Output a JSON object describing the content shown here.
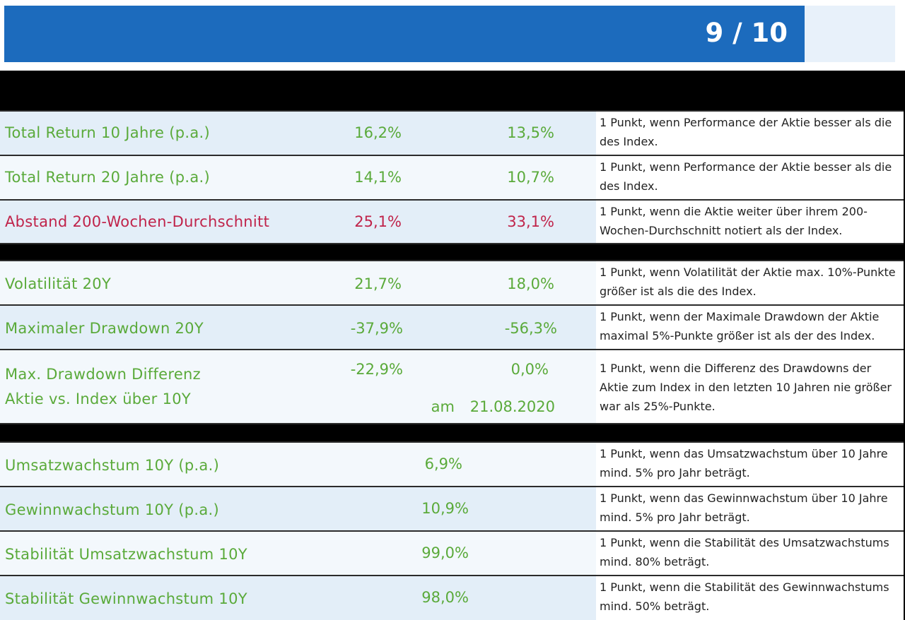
{
  "header": {
    "score": "9 / 10"
  },
  "performance_rows": [
    {
      "label": "Total Return 10 Jahre (p.a.)",
      "stock": "16,2%",
      "index": "13,5%",
      "desc": "1 Punkt, wenn Performance der Aktie besser als die des Index.",
      "status": "pass"
    },
    {
      "label": "Total Return 20 Jahre (p.a.)",
      "stock": "14,1%",
      "index": "10,7%",
      "desc": "1 Punkt, wenn Performance der Aktie besser als die des Index.",
      "status": "pass"
    },
    {
      "label": "Abstand 200-Wochen-Durchschnitt",
      "stock": "25,1%",
      "index": "33,1%",
      "desc": "1 Punkt, wenn die Aktie weiter über ihrem 200-Wochen-Durchschnitt notiert als der Index.",
      "status": "fail"
    }
  ],
  "risk_rows": [
    {
      "label": "Volatilität 20Y",
      "stock": "21,7%",
      "index": "18,0%",
      "desc": "1 Punkt, wenn Volatilität der Aktie max. 10%-Punkte größer ist als die des Index.",
      "status": "pass"
    },
    {
      "label": "Maximaler Drawdown 20Y",
      "stock": "-37,9%",
      "index": "-56,3%",
      "desc": "1 Punkt, wenn der Maximale Drawdown der Aktie maximal 5%-Punkte größer ist als der des Index.",
      "status": "pass"
    },
    {
      "label_line1": "Max. Drawdown Differenz",
      "label_line2": "Aktie vs. Index über 10Y",
      "stock": "-22,9%",
      "index": "0,0%",
      "date_prefix": "am",
      "date": "21.08.2020",
      "desc": "1 Punkt, wenn die Differenz des Drawdowns der Aktie zum Index in den letzten 10 Jahren nie größer war als 25%-Punkte.",
      "status": "pass"
    }
  ],
  "growth_rows": [
    {
      "label": "Umsatzwachstum 10Y (p.a.)",
      "value": "6,9%",
      "desc": "1 Punkt, wenn das Umsatzwachstum über 10 Jahre mind. 5% pro Jahr beträgt.",
      "status": "pass"
    },
    {
      "label": "Gewinnwachstum 10Y (p.a.)",
      "value": "10,9%",
      "desc": "1 Punkt, wenn das Gewinnwachstum über 10 Jahre mind. 5% pro Jahr beträgt.",
      "status": "pass"
    },
    {
      "label": "Stabilität Umsatzwachstum 10Y",
      "value": "99,0%",
      "desc": "1 Punkt, wenn die Stabilität des Umsatzwachstums mind. 80% beträgt.",
      "status": "pass"
    },
    {
      "label": "Stabilität Gewinnwachstum 10Y",
      "value": "98,0%",
      "desc": "1 Punkt, wenn die Stabilität des Gewinnwachstums mind. 50% beträgt.",
      "status": "pass"
    }
  ],
  "colors": {
    "header_blue": "#1c6bbd",
    "pass_green": "#5aaa3a",
    "fail_red": "#c0234a",
    "row_shade": "#e3eef8"
  }
}
